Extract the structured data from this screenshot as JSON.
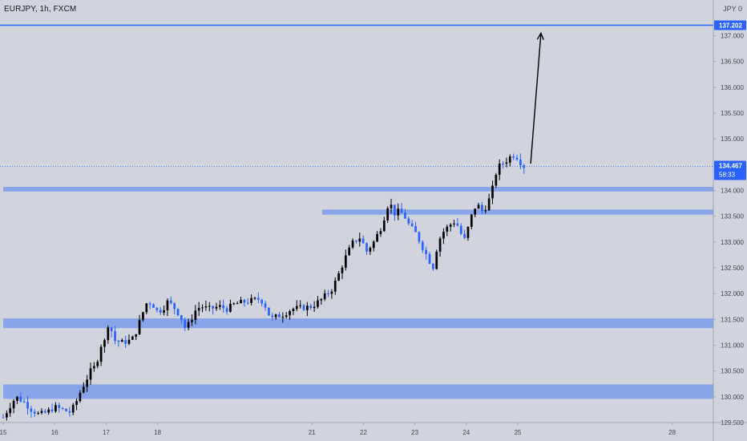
{
  "header": {
    "symbol": "EURJPY, 1h, FXCM",
    "currency_menu": "JPY",
    "currency_suffix": "0"
  },
  "colors": {
    "background": "#d1d4dc",
    "bull_candle": "#000000",
    "bear_candle": "#2962ff",
    "zone": "#7c9ceb",
    "target_line": "#2962ff",
    "price_line": "#2962ff",
    "arrow": "#000000"
  },
  "chart_data": {
    "type": "candlestick",
    "instrument": "EURJPY",
    "timeframe": "1h",
    "source": "FXCM",
    "y_range": [
      129.5,
      137.35
    ],
    "y_ticks": [
      {
        "value": 137.0,
        "label": "137.000"
      },
      {
        "value": 136.5,
        "label": "136.500"
      },
      {
        "value": 136.0,
        "label": "136.000"
      },
      {
        "value": 135.5,
        "label": "135.500"
      },
      {
        "value": 135.0,
        "label": "135.000"
      },
      {
        "value": 134.0,
        "label": "134.000"
      },
      {
        "value": 133.5,
        "label": "133.500"
      },
      {
        "value": 133.0,
        "label": "133.000"
      },
      {
        "value": 132.5,
        "label": "132.500"
      },
      {
        "value": 132.0,
        "label": "132.000"
      },
      {
        "value": 131.5,
        "label": "131.500"
      },
      {
        "value": 131.0,
        "label": "131.000"
      },
      {
        "value": 130.5,
        "label": "130.500"
      },
      {
        "value": 130.0,
        "label": "130.000"
      },
      {
        "value": 129.5,
        "label": "129.500"
      }
    ],
    "x_range": [
      15.0,
      28.8
    ],
    "x_ticks": [
      {
        "value": 15.0,
        "label": "15"
      },
      {
        "value": 16.0,
        "label": "16"
      },
      {
        "value": 17.0,
        "label": "17"
      },
      {
        "value": 18.0,
        "label": "18"
      },
      {
        "value": 21.0,
        "label": "21"
      },
      {
        "value": 22.0,
        "label": "22"
      },
      {
        "value": 23.0,
        "label": "23"
      },
      {
        "value": 24.0,
        "label": "24"
      },
      {
        "value": 25.0,
        "label": "25"
      },
      {
        "value": 28.0,
        "label": "28"
      }
    ],
    "price_path": [
      [
        15.0,
        129.6
      ],
      [
        15.15,
        129.85
      ],
      [
        15.25,
        130.0
      ],
      [
        15.4,
        129.9
      ],
      [
        15.55,
        129.75
      ],
      [
        15.7,
        129.65
      ],
      [
        15.85,
        129.7
      ],
      [
        16.0,
        129.8
      ],
      [
        16.15,
        129.75
      ],
      [
        16.3,
        129.7
      ],
      [
        16.4,
        129.85
      ],
      [
        16.5,
        130.1
      ],
      [
        16.6,
        130.3
      ],
      [
        16.7,
        130.5
      ],
      [
        16.8,
        130.6
      ],
      [
        16.9,
        131.0
      ],
      [
        17.0,
        131.1
      ],
      [
        17.05,
        131.5
      ],
      [
        17.15,
        131.1
      ],
      [
        17.3,
        131.05
      ],
      [
        17.5,
        131.1
      ],
      [
        17.6,
        131.3
      ],
      [
        17.7,
        131.6
      ],
      [
        17.8,
        131.85
      ],
      [
        17.9,
        131.8
      ],
      [
        18.0,
        131.65
      ],
      [
        18.1,
        131.7
      ],
      [
        18.2,
        131.85
      ],
      [
        18.35,
        131.7
      ],
      [
        18.45,
        131.55
      ],
      [
        18.55,
        131.3
      ],
      [
        18.65,
        131.5
      ],
      [
        18.75,
        131.7
      ],
      [
        18.85,
        131.75
      ],
      [
        19.0,
        131.7
      ],
      [
        19.2,
        131.75
      ],
      [
        19.35,
        131.7
      ],
      [
        19.5,
        131.8
      ],
      [
        20.0,
        131.9
      ],
      [
        20.1,
        131.75
      ],
      [
        20.2,
        131.5
      ],
      [
        20.3,
        131.55
      ],
      [
        20.45,
        131.6
      ],
      [
        20.6,
        131.7
      ],
      [
        21.0,
        131.75
      ],
      [
        21.2,
        131.9
      ],
      [
        21.4,
        132.1
      ],
      [
        21.55,
        132.45
      ],
      [
        21.65,
        132.7
      ],
      [
        21.8,
        133.0
      ],
      [
        21.95,
        133.1
      ],
      [
        22.05,
        132.8
      ],
      [
        22.2,
        133.0
      ],
      [
        22.35,
        133.3
      ],
      [
        22.5,
        133.8
      ],
      [
        22.6,
        133.55
      ],
      [
        22.7,
        133.6
      ],
      [
        22.8,
        133.5
      ],
      [
        22.9,
        133.3
      ],
      [
        23.0,
        133.2
      ],
      [
        23.1,
        133.0
      ],
      [
        23.25,
        132.7
      ],
      [
        23.35,
        132.5
      ],
      [
        23.45,
        133.0
      ],
      [
        23.55,
        133.2
      ],
      [
        23.65,
        133.3
      ],
      [
        23.75,
        133.4
      ],
      [
        23.85,
        133.3
      ],
      [
        23.95,
        133.0
      ],
      [
        24.0,
        133.15
      ],
      [
        24.1,
        133.5
      ],
      [
        24.2,
        133.75
      ],
      [
        24.3,
        133.6
      ],
      [
        24.4,
        133.7
      ],
      [
        24.5,
        134.0
      ],
      [
        24.58,
        134.35
      ],
      [
        24.66,
        134.5
      ],
      [
        24.75,
        134.55
      ],
      [
        24.85,
        134.65
      ],
      [
        24.95,
        134.7
      ],
      [
        25.05,
        134.55
      ],
      [
        25.12,
        134.467
      ]
    ],
    "candle_count": 150,
    "horizontal_zones": [
      {
        "x_start": 15.0,
        "low": 129.96,
        "high": 130.24
      },
      {
        "x_start": 15.0,
        "low": 131.33,
        "high": 131.52
      },
      {
        "x_start": 21.2,
        "low": 133.53,
        "high": 133.63
      },
      {
        "x_start": 15.0,
        "low": 133.98,
        "high": 134.07
      }
    ],
    "target_line": {
      "value": 137.202,
      "label": "137.202"
    },
    "current_price": {
      "value": 134.467,
      "label": "134.467",
      "countdown": "58:33"
    },
    "annotation_arrow": {
      "from": [
        25.25,
        134.52
      ],
      "to": [
        25.45,
        137.05
      ],
      "direction": "up"
    }
  }
}
